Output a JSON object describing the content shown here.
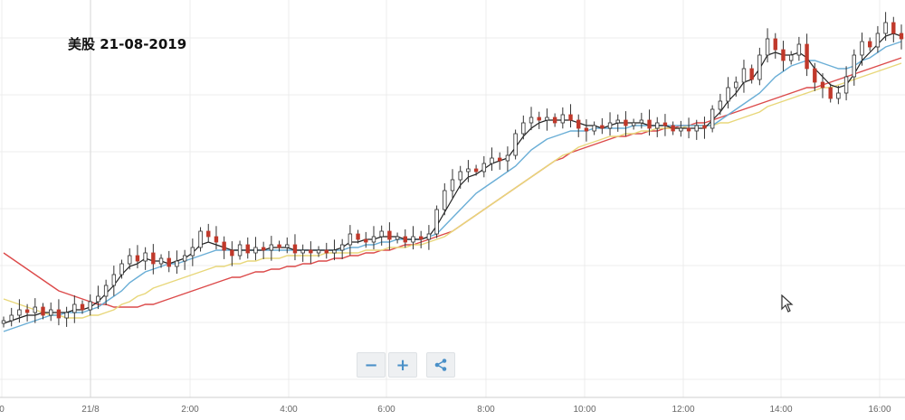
{
  "title": "美股 21-08-2019",
  "controls": {
    "zoom_out": "−",
    "zoom_in": "+",
    "share_icon": "share-icon"
  },
  "chart_data": {
    "type": "candlestick",
    "x_ticks": [
      "0",
      "21/8",
      "2:00",
      "4:00",
      "6:00",
      "8:00",
      "10:00",
      "12:00",
      "14:00",
      "16:00"
    ],
    "x_range": [
      "2019-08-20 23:50",
      "2019-08-21 16:45"
    ],
    "y_range": [
      0,
      100
    ],
    "grid": true,
    "candle_colors": {
      "up": "#2d2d2d",
      "down": "#c0392b"
    },
    "line_colors": {
      "ma_fast": "#222222",
      "ma_mid": "#6aaed6",
      "ma_slow": "#e8d77a",
      "ma_long": "#dc4a4a"
    },
    "closes": [
      20,
      22,
      24,
      23,
      25,
      22,
      24,
      21,
      23,
      26,
      24,
      27,
      29,
      33,
      37,
      41,
      44,
      42,
      45,
      41,
      43,
      40,
      42,
      44,
      47,
      53,
      51,
      49,
      46,
      44,
      48,
      45,
      47,
      46,
      48,
      47,
      48,
      45,
      46,
      45,
      46,
      45,
      46,
      48,
      52,
      50,
      49,
      51,
      53,
      50,
      51,
      49,
      51,
      50,
      52,
      61,
      68,
      72,
      75,
      76,
      75,
      78,
      80,
      79,
      81,
      89,
      93,
      95,
      94,
      95,
      93,
      96,
      94,
      91,
      90,
      92,
      91,
      93,
      94,
      92,
      93,
      94,
      91,
      93,
      92,
      90,
      91,
      90,
      92,
      91,
      98,
      101,
      106,
      108,
      113,
      109,
      118,
      124,
      120,
      116,
      118,
      122,
      113,
      108,
      106,
      102,
      104,
      110,
      118,
      123,
      121,
      126,
      130,
      126,
      124
    ],
    "ma_fast": [
      19,
      20,
      21,
      22,
      22,
      23,
      23,
      23,
      23,
      24,
      24,
      25,
      27,
      30,
      33,
      37,
      40,
      41,
      43,
      42,
      42,
      41,
      42,
      43,
      45,
      48,
      49,
      48,
      47,
      46,
      46,
      46,
      46,
      46,
      47,
      47,
      47,
      46,
      46,
      46,
      46,
      46,
      46,
      47,
      49,
      49,
      50,
      50,
      51,
      51,
      51,
      50,
      50,
      50,
      51,
      55,
      60,
      65,
      70,
      73,
      74,
      76,
      78,
      79,
      80,
      84,
      88,
      91,
      93,
      94,
      94,
      94,
      94,
      93,
      92,
      92,
      91,
      92,
      93,
      93,
      93,
      93,
      92,
      92,
      92,
      91,
      91,
      91,
      91,
      91,
      94,
      97,
      101,
      104,
      108,
      109,
      113,
      118,
      119,
      118,
      118,
      119,
      117,
      113,
      110,
      107,
      106,
      107,
      111,
      116,
      119,
      122,
      125,
      126,
      125
    ],
    "ma_mid": [
      16,
      17,
      18,
      19,
      20,
      21,
      22,
      22,
      23,
      23,
      23,
      24,
      25,
      27,
      29,
      31,
      34,
      36,
      38,
      39,
      40,
      41,
      41,
      42,
      43,
      44,
      45,
      46,
      46,
      46,
      46,
      46,
      46,
      46,
      46,
      46,
      46,
      46,
      46,
      46,
      46,
      46,
      46,
      46,
      47,
      47,
      48,
      48,
      49,
      49,
      50,
      50,
      50,
      50,
      51,
      52,
      55,
      58,
      61,
      64,
      67,
      69,
      71,
      73,
      75,
      77,
      80,
      83,
      85,
      87,
      88,
      89,
      90,
      90,
      90,
      91,
      91,
      91,
      91,
      91,
      92,
      92,
      92,
      92,
      92,
      92,
      92,
      92,
      92,
      92,
      92,
      94,
      96,
      98,
      100,
      102,
      104,
      107,
      110,
      112,
      114,
      115,
      116,
      116,
      115,
      114,
      113,
      113,
      114,
      116,
      117,
      119,
      121,
      122,
      123
    ],
    "ma_slow": [
      28,
      27,
      26,
      25,
      24,
      23,
      22,
      22,
      21,
      21,
      21,
      22,
      22,
      23,
      24,
      26,
      27,
      29,
      30,
      32,
      33,
      34,
      35,
      36,
      37,
      38,
      39,
      40,
      40,
      41,
      41,
      42,
      42,
      43,
      43,
      43,
      44,
      44,
      44,
      44,
      44,
      45,
      45,
      45,
      45,
      45,
      46,
      46,
      46,
      47,
      47,
      47,
      48,
      48,
      49,
      50,
      51,
      53,
      55,
      57,
      59,
      61,
      63,
      65,
      67,
      69,
      71,
      73,
      75,
      77,
      79,
      81,
      82,
      84,
      85,
      86,
      87,
      88,
      88,
      89,
      89,
      90,
      90,
      91,
      91,
      91,
      91,
      92,
      92,
      92,
      92,
      93,
      93,
      94,
      95,
      96,
      97,
      99,
      100,
      101,
      102,
      103,
      104,
      105,
      106,
      106,
      107,
      108,
      109,
      110,
      111,
      112,
      113,
      114,
      115
    ],
    "ma_long": [
      45,
      43,
      41,
      39,
      37,
      35,
      33,
      31,
      30,
      29,
      28,
      27,
      26,
      26,
      25,
      25,
      25,
      25,
      26,
      26,
      27,
      28,
      29,
      30,
      31,
      32,
      33,
      34,
      35,
      36,
      36,
      37,
      38,
      38,
      39,
      39,
      40,
      40,
      41,
      41,
      42,
      42,
      43,
      43,
      44,
      44,
      45,
      45,
      46,
      46,
      47,
      48,
      48,
      49,
      50,
      51,
      52,
      53,
      55,
      57,
      59,
      61,
      63,
      65,
      67,
      69,
      71,
      73,
      75,
      77,
      79,
      80,
      82,
      83,
      84,
      85,
      86,
      87,
      88,
      88,
      89,
      89,
      90,
      90,
      91,
      91,
      92,
      92,
      93,
      93,
      94,
      95,
      96,
      97,
      98,
      99,
      100,
      101,
      102,
      103,
      104,
      105,
      106,
      106,
      107,
      108,
      109,
      110,
      111,
      112,
      113,
      114,
      115,
      116,
      117
    ]
  }
}
